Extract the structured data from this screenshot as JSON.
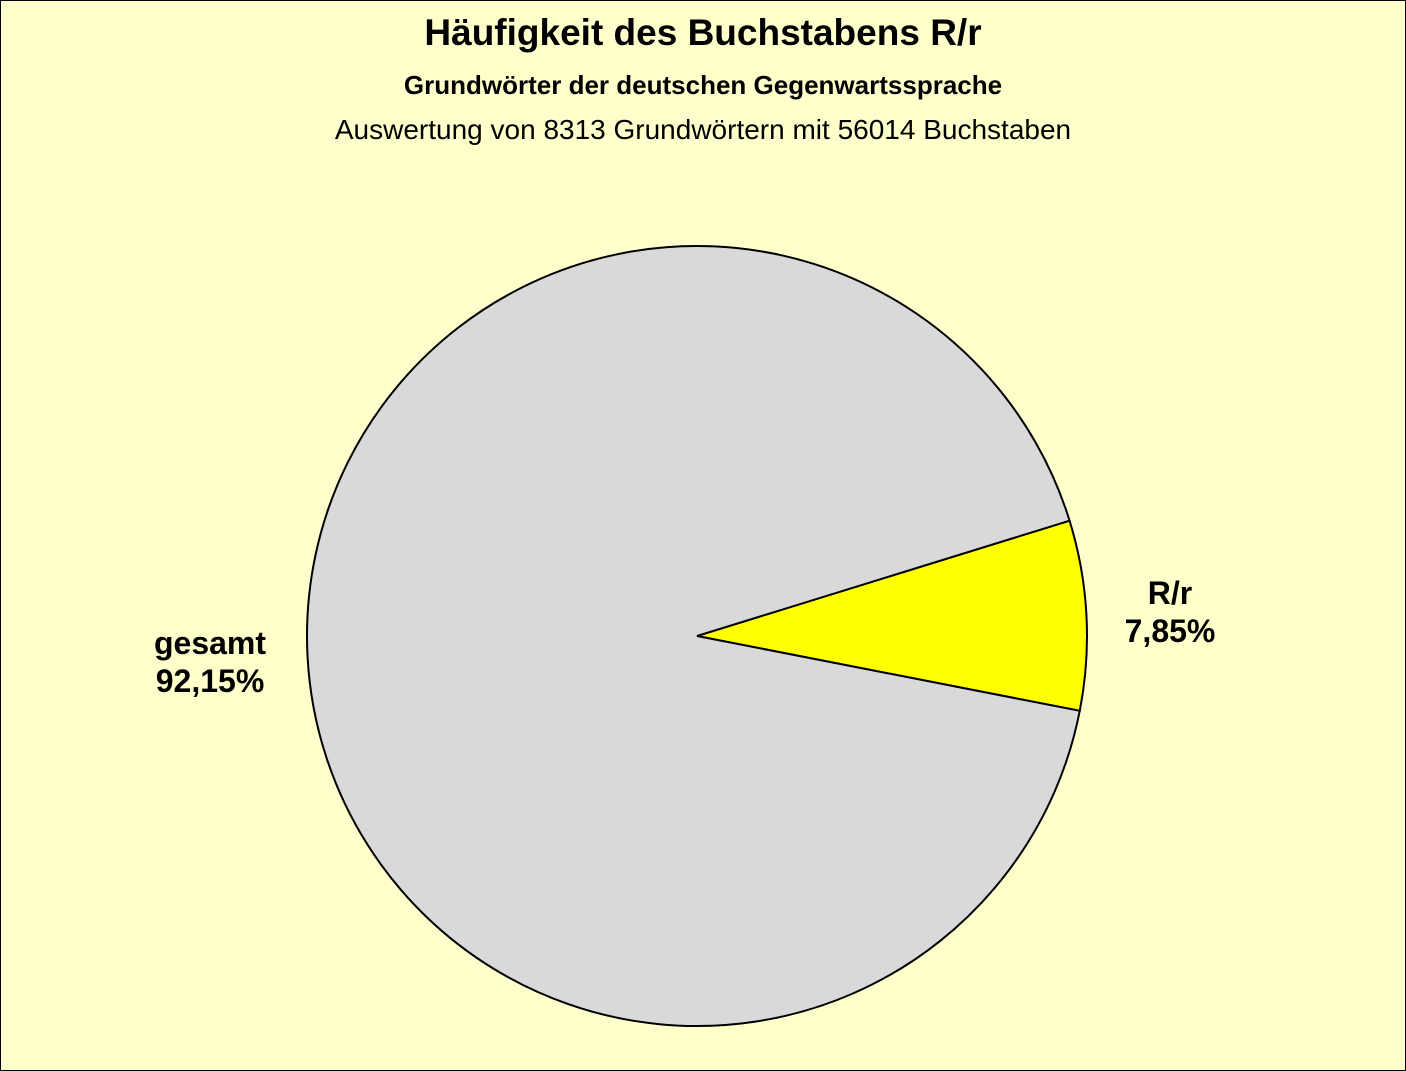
{
  "chart_data": {
    "type": "pie",
    "title": "Häufigkeit des Buchstabens R/r",
    "subtitle": "Grundwörter der deutschen Gegenwartssprache",
    "note": "Auswertung von 8313 Grundwörtern mit 56014 Buchstaben",
    "slices": [
      {
        "label": "R/r",
        "value": 7.85,
        "value_label": "7,85%",
        "color": "#FFFF00"
      },
      {
        "label": "gesamt",
        "value": 92.15,
        "value_label": "92,15%",
        "color": "#D9D9D9"
      }
    ],
    "background": "#FFFFCC"
  }
}
